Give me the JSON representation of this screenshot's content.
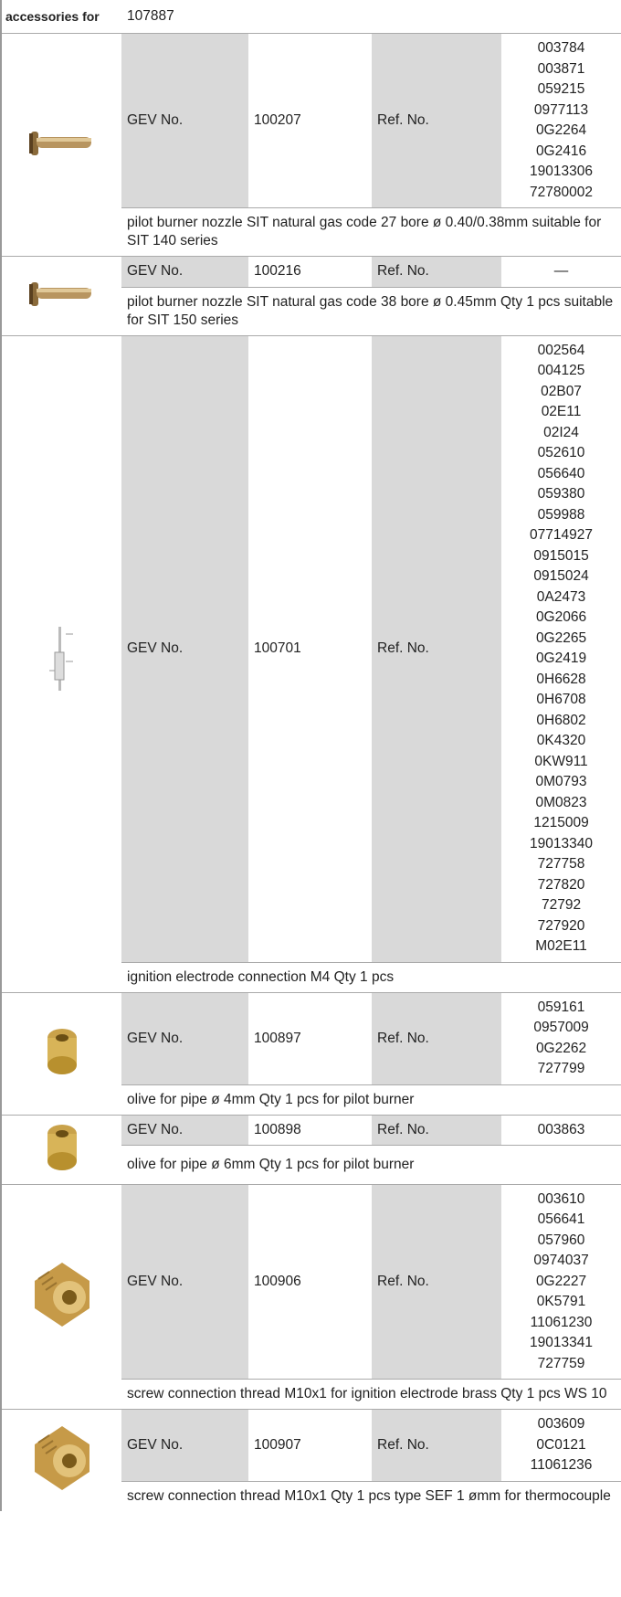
{
  "header": {
    "label": "accessories for",
    "value": "107887"
  },
  "items": [
    {
      "gev_label": "GEV No.",
      "gev_no": "100207",
      "ref_label": "Ref. No.",
      "refs": [
        "003784",
        "003871",
        "059215",
        "0977113",
        "0G2264",
        "0G2416",
        "19013306",
        "72780002"
      ],
      "description": "pilot burner nozzle  SIT natural gas code 27 bore ø 0.40/0.38mm suitable for SIT 140 series"
    },
    {
      "gev_label": "GEV No.",
      "gev_no": "100216",
      "ref_label": "Ref. No.",
      "refs": [
        "—"
      ],
      "description": "pilot burner nozzle  SIT natural gas code 38 bore ø 0.45mm Qty 1 pcs suitable for SIT 150 series"
    },
    {
      "gev_label": "GEV No.",
      "gev_no": "100701",
      "ref_label": "Ref. No.",
      "refs": [
        "002564",
        "004125",
        "02B07",
        "02E11",
        "02I24",
        "052610",
        "056640",
        "059380",
        "059988",
        "07714927",
        "0915015",
        "0915024",
        "0A2473",
        "0G2066",
        "0G2265",
        "0G2419",
        "0H6628",
        "0H6708",
        "0H6802",
        "0K4320",
        "0KW911",
        "0M0793",
        "0M0823",
        "1215009",
        "19013340",
        "727758",
        "727820",
        "72792",
        "727920",
        "M02E11"
      ],
      "description": "ignition electrode  connection M4 Qty 1 pcs"
    },
    {
      "gev_label": "GEV No.",
      "gev_no": "100897",
      "ref_label": "Ref. No.",
      "refs": [
        "059161",
        "0957009",
        "0G2262",
        "727799"
      ],
      "description": "olive  for pipe ø 4mm Qty 1 pcs for pilot burner"
    },
    {
      "gev_label": "GEV No.",
      "gev_no": "100898",
      "ref_label": "Ref. No.",
      "refs": [
        "003863"
      ],
      "description": "olive  for pipe ø 6mm Qty 1 pcs for pilot burner"
    },
    {
      "gev_label": "GEV No.",
      "gev_no": "100906",
      "ref_label": "Ref. No.",
      "refs": [
        "003610",
        "056641",
        "057960",
        "0974037",
        "0G2227",
        "0K5791",
        "11061230",
        "19013341",
        "727759"
      ],
      "description": "screw connection  thread M10x1 for ignition electrode brass Qty 1 pcs WS 10"
    },
    {
      "gev_label": "GEV No.",
      "gev_no": "100907",
      "ref_label": "Ref. No.",
      "refs": [
        "003609",
        "0C0121",
        "11061236"
      ],
      "description": "screw connection  thread M10x1 Qty 1 pcs type SEF 1 ømm for thermocouple"
    }
  ]
}
